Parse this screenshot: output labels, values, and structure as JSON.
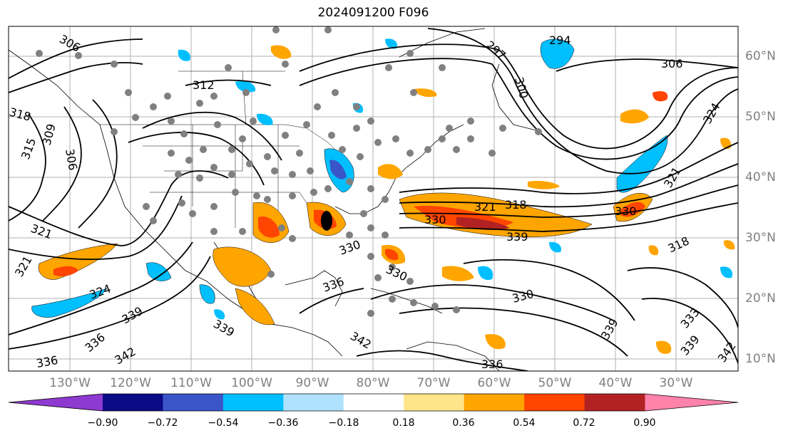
{
  "title": "2024091200 F096",
  "lon_labels": [
    "130°W",
    "120°W",
    "110°W",
    "100°W",
    "90°W",
    "80°W",
    "70°W",
    "60°W",
    "50°W",
    "40°W",
    "30°W"
  ],
  "lat_labels": [
    "60°N",
    "50°N",
    "40°N",
    "30°N",
    "20°N",
    "10°N"
  ],
  "colorbar": {
    "ticks": [
      "−0.90",
      "−0.72",
      "−0.54",
      "−0.36",
      "−0.18",
      "0.18",
      "0.36",
      "0.54",
      "0.72",
      "0.90"
    ],
    "colors": [
      "#8e3ad0",
      "#0b0b85",
      "#3a55c8",
      "#00bfff",
      "#b0e2ff",
      "#ffffff",
      "#ffe58a",
      "#ffa500",
      "#ff4500",
      "#b22222",
      "#ff82ab"
    ]
  },
  "contour_labels": [
    "306",
    "312",
    "318",
    "309",
    "315",
    "306",
    "321",
    "324",
    "321",
    "330",
    "321",
    "318",
    "330",
    "339",
    "336",
    "330",
    "336",
    "339",
    "342",
    "336",
    "339",
    "342",
    "336",
    "330",
    "294",
    "297",
    "300",
    "306",
    "324",
    "321",
    "318",
    "330",
    "333",
    "339",
    "339",
    "342"
  ]
}
